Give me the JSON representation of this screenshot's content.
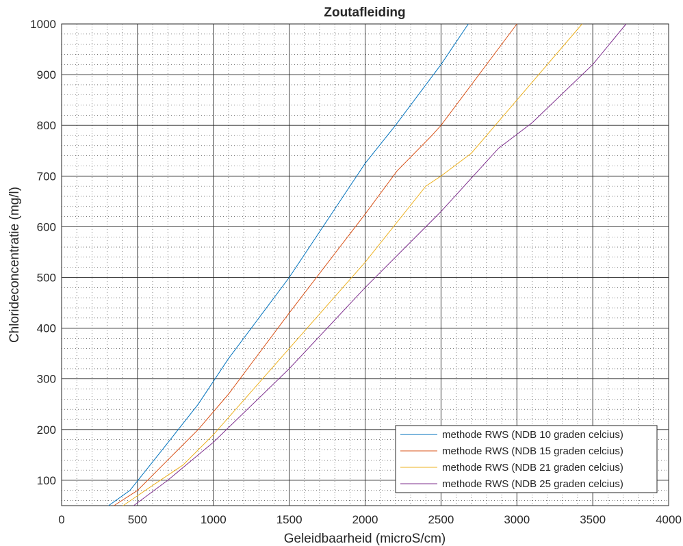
{
  "chart_data": {
    "type": "line",
    "title": "Zoutafleiding",
    "xlabel": "Geleidbaarheid (microS/cm)",
    "ylabel": "Chlorideconcentratie (mg/l)",
    "xlim": [
      0,
      4000
    ],
    "ylim": [
      50,
      1000
    ],
    "xticks": [
      0,
      500,
      1000,
      1500,
      2000,
      2500,
      3000,
      3500,
      4000
    ],
    "yticks": [
      100,
      200,
      300,
      400,
      500,
      600,
      700,
      800,
      900,
      1000
    ],
    "grid": "major and minor (dotted)",
    "legend_position": "bottom-right",
    "series": [
      {
        "name": "methode RWS (NDB 10 graden celcius)",
        "color": "#0072BD",
        "x": [
          310,
          450,
          650,
          900,
          1100,
          1500,
          2000,
          2200,
          2500,
          2680
        ],
        "y": [
          50,
          80,
          155,
          250,
          340,
          500,
          725,
          800,
          920,
          1000
        ]
      },
      {
        "name": "methode RWS (NDB 15 graden celcius)",
        "color": "#D95319",
        "x": [
          345,
          500,
          700,
          900,
          1100,
          1500,
          2000,
          2210,
          2440,
          2500,
          3000
        ],
        "y": [
          50,
          80,
          140,
          200,
          270,
          430,
          625,
          710,
          780,
          800,
          1000
        ]
      },
      {
        "name": "methode RWS (NDB 21 graden celcius)",
        "color": "#EDB120",
        "x": [
          405,
          600,
          800,
          1000,
          1500,
          2000,
          2400,
          2500,
          2700,
          3000,
          3430
        ],
        "y": [
          50,
          90,
          130,
          190,
          360,
          530,
          680,
          700,
          745,
          850,
          1000
        ]
      },
      {
        "name": "methode RWS (NDB 25 graden celcius)",
        "color": "#7E2F8E",
        "x": [
          475,
          700,
          900,
          1000,
          1500,
          2000,
          2500,
          2880,
          3100,
          3500,
          3720
        ],
        "y": [
          50,
          100,
          150,
          175,
          320,
          480,
          630,
          755,
          805,
          920,
          1000
        ]
      }
    ]
  }
}
